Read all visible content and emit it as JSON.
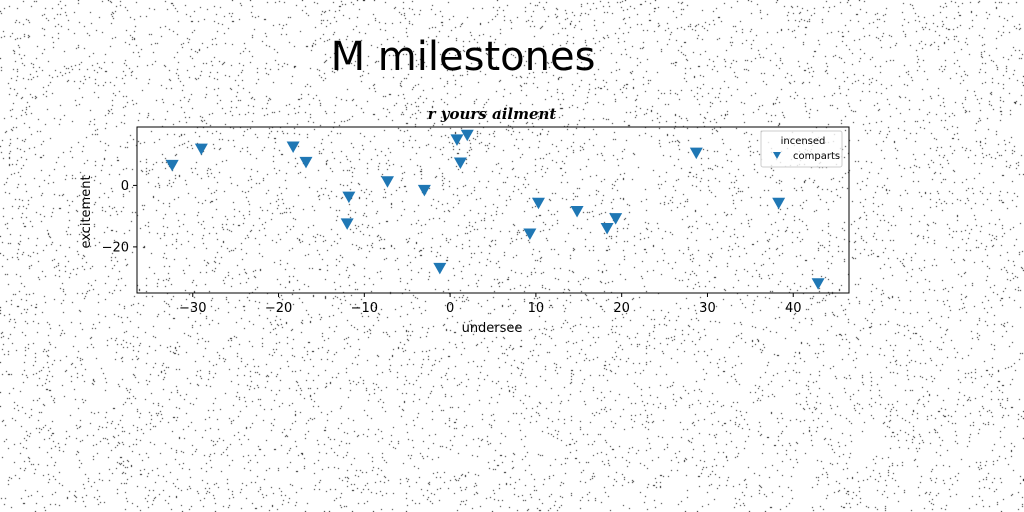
{
  "page": {
    "title": "M milestones"
  },
  "chart_data": {
    "type": "scatter",
    "title": "r yours ailment",
    "xlabel": "undersee",
    "ylabel": "excitement",
    "xlim": [
      -36.5,
      46.5
    ],
    "ylim": [
      -35,
      19
    ],
    "xticks": [
      -30,
      -20,
      -10,
      0,
      10,
      20,
      30,
      40
    ],
    "yticks": [
      -20,
      0
    ],
    "tick_labels": {
      "x": [
        "−30",
        "−20",
        "−10",
        "0",
        "10",
        "20",
        "30",
        "40"
      ],
      "y": [
        "−20",
        "0"
      ]
    },
    "grid": false,
    "legend": {
      "placement": "top-right",
      "title": "incensed",
      "entries": [
        "comparts"
      ]
    },
    "series": [
      {
        "name": "comparts",
        "marker": "triangle-down",
        "color": "#1f77b4",
        "points": [
          {
            "x": -32.4,
            "y": 6.5
          },
          {
            "x": -29.0,
            "y": 11.8
          },
          {
            "x": -18.3,
            "y": 12.5
          },
          {
            "x": -16.8,
            "y": 7.5
          },
          {
            "x": -11.8,
            "y": -3.8
          },
          {
            "x": -12.0,
            "y": -12.5
          },
          {
            "x": -7.3,
            "y": 1.2
          },
          {
            "x": -3.0,
            "y": -1.6
          },
          {
            "x": -1.2,
            "y": -27.0
          },
          {
            "x": 0.8,
            "y": 14.8
          },
          {
            "x": 1.2,
            "y": 7.3
          },
          {
            "x": 2.0,
            "y": 16.3
          },
          {
            "x": 9.3,
            "y": -15.8
          },
          {
            "x": 10.3,
            "y": -5.8
          },
          {
            "x": 14.8,
            "y": -8.5
          },
          {
            "x": 18.3,
            "y": -14.0
          },
          {
            "x": 19.3,
            "y": -10.8
          },
          {
            "x": 28.7,
            "y": 10.5
          },
          {
            "x": 38.3,
            "y": -5.8
          },
          {
            "x": 42.9,
            "y": -32.0
          }
        ]
      }
    ]
  }
}
